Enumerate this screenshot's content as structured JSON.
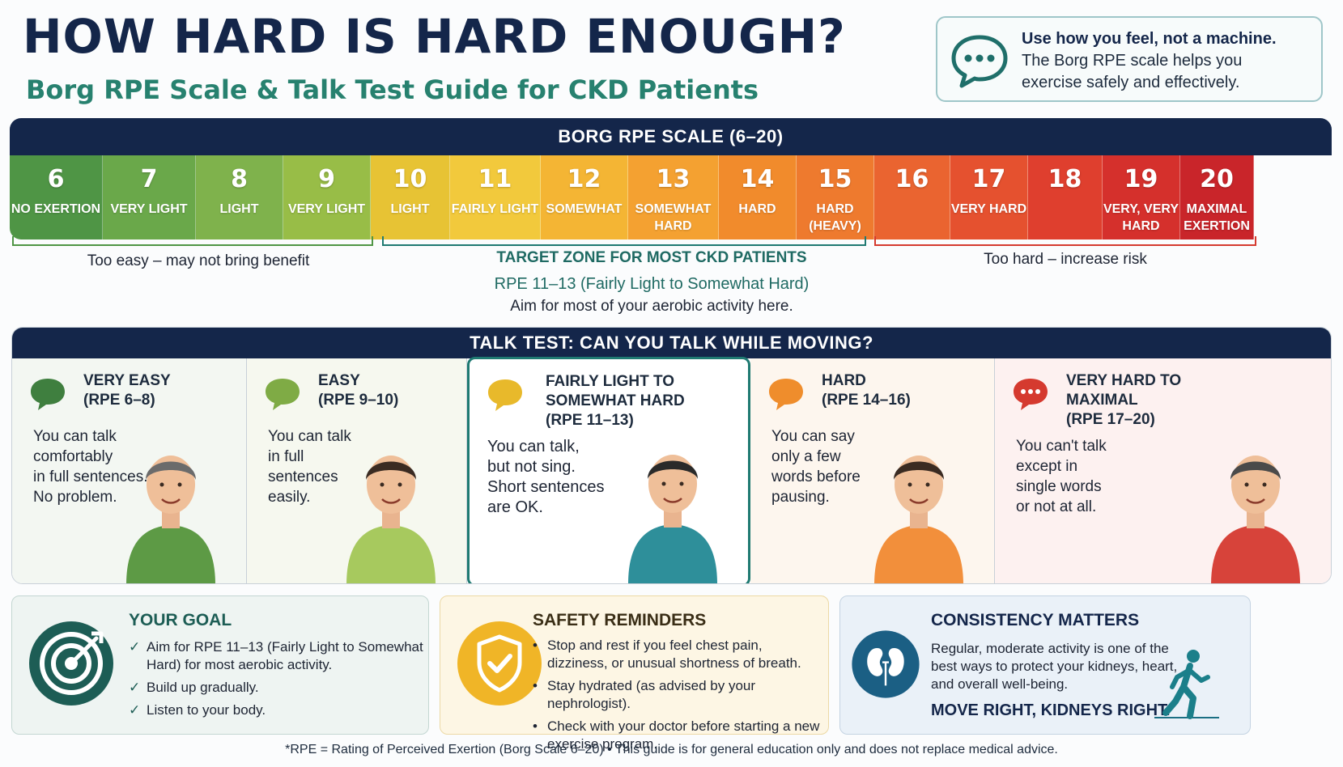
{
  "title": "HOW HARD IS HARD ENOUGH?",
  "subtitle": "Borg RPE Scale & Talk Test Guide for CKD Patients",
  "callout": {
    "bold": "Use how you feel, not a machine.",
    "line2": "The Borg RPE scale helps you",
    "line3": "exercise safely and effectively.",
    "icon": "chat-bubble-icon"
  },
  "scale": {
    "heading": "BORG RPE SCALE (6–20)",
    "cells": [
      {
        "num": "6",
        "label": "NO EXERTION",
        "color": "#4f9545"
      },
      {
        "num": "7",
        "label": "VERY LIGHT",
        "color": "#6aa84a"
      },
      {
        "num": "8",
        "label": "LIGHT",
        "color": "#7fb24c"
      },
      {
        "num": "9",
        "label": "VERY LIGHT",
        "color": "#98bd47"
      },
      {
        "num": "10",
        "label": "LIGHT",
        "color": "#e7c334"
      },
      {
        "num": "11",
        "label": "FAIRLY LIGHT",
        "color": "#f2c93c"
      },
      {
        "num": "12",
        "label": "SOMEWHAT",
        "color": "#f4b534"
      },
      {
        "num": "13",
        "label": "SOMEWHAT HARD",
        "color": "#f4a131"
      },
      {
        "num": "14",
        "label": "HARD",
        "color": "#f18b2c"
      },
      {
        "num": "15",
        "label": "HARD (HEAVY)",
        "color": "#ee7a2e"
      },
      {
        "num": "16",
        "label": "",
        "color": "#ea6430"
      },
      {
        "num": "17",
        "label": "VERY HARD",
        "color": "#e5512f"
      },
      {
        "num": "18",
        "label": "",
        "color": "#df3f2e"
      },
      {
        "num": "19",
        "label": "VERY, VERY HARD",
        "color": "#d5302c"
      },
      {
        "num": "20",
        "label": "MAXIMAL EXERTION",
        "color": "#c9252a"
      }
    ],
    "too_easy": "Too easy – may not bring benefit",
    "target_head": "TARGET ZONE FOR MOST CKD PATIENTS",
    "target_range": "RPE 11–13 (Fairly Light to Somewhat Hard)",
    "target_aim": "Aim for most of your aerobic activity here.",
    "too_hard": "Too hard – increase risk"
  },
  "talk": {
    "heading": "TALK TEST: CAN YOU TALK WHILE MOVING?",
    "panels": [
      {
        "head": [
          "VERY EASY",
          "(RPE 6–8)"
        ],
        "desc": [
          "You can talk",
          "comfortably",
          "in full sentences.",
          "No problem."
        ],
        "color": "#3f7f3f",
        "bg": "#f3f7f2",
        "shirt": "#5d9a45",
        "hair": "#6b6b6b"
      },
      {
        "head": [
          "EASY",
          "(RPE 9–10)"
        ],
        "desc": [
          "You can talk",
          "in full",
          "sentences",
          "easily."
        ],
        "color": "#7fab45",
        "bg": "#f6f8ef",
        "shirt": "#a7c95e",
        "hair": "#3a2b22"
      },
      {
        "head": [
          "FAIRLY LIGHT TO",
          "SOMEWHAT HARD",
          "(RPE 11–13)"
        ],
        "desc": [
          "You can talk,",
          "but not sing.",
          "Short sentences",
          "are OK."
        ],
        "color": "#e8b92b",
        "bg": "#ffffff",
        "shirt": "#2e8f9a",
        "hair": "#2a2a2a"
      },
      {
        "head": [
          "HARD",
          "(RPE 14–16)"
        ],
        "desc": [
          "You can say",
          "only a few",
          "words before",
          "pausing."
        ],
        "color": "#ef8d2c",
        "bg": "#fdf6ee",
        "shirt": "#f28f3b",
        "hair": "#3a2b22"
      },
      {
        "head": [
          "VERY HARD TO",
          "MAXIMAL",
          "(RPE 17–20)"
        ],
        "desc": [
          "You can't talk",
          "except in",
          "single words",
          "or not at all."
        ],
        "color": "#d53a2f",
        "bg": "#fdf1f0",
        "shirt": "#d7433a",
        "hair": "#4a4a4a"
      }
    ]
  },
  "goal": {
    "title": "YOUR GOAL",
    "items": [
      "Aim for RPE 11–13 (Fairly Light to Somewhat Hard) for most aerobic activity.",
      "Build up gradually.",
      "Listen to your body."
    ],
    "icon": "target-icon"
  },
  "safety": {
    "title": "SAFETY REMINDERS",
    "items": [
      "Stop and rest if you feel chest pain, dizziness, or unusual shortness of breath.",
      "Stay hydrated (as advised by your nephrologist).",
      "Check with your doctor before starting a new exercise program."
    ],
    "icon": "shield-check-icon"
  },
  "consistency": {
    "title": "CONSISTENCY MATTERS",
    "text": "Regular, moderate activity is one of the best ways to protect your kidneys, heart, and overall well-being.",
    "cta": "MOVE RIGHT, KIDNEYS RIGHT.",
    "icon": "kidneys-icon",
    "walker_icon": "walking-person-icon"
  },
  "footer": "*RPE = Rating of Perceived Exertion (Borg Scale 6–20)   •   This guide is for general education only and does not replace medical advice."
}
